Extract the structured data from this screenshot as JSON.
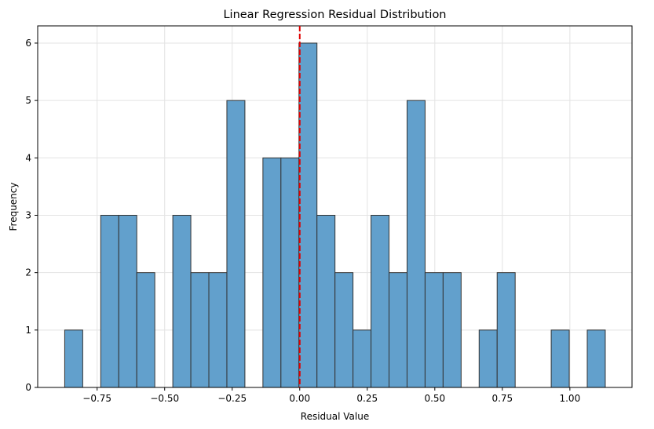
{
  "chart_data": {
    "type": "bar",
    "title": "Linear Regression Residual Distribution",
    "xlabel": "Residual Value",
    "ylabel": "Frequency",
    "bin_start": -0.87,
    "bin_width": 0.0667,
    "counts": [
      1,
      0,
      3,
      3,
      2,
      0,
      3,
      2,
      2,
      5,
      0,
      4,
      4,
      6,
      3,
      2,
      1,
      3,
      2,
      5,
      2,
      2,
      0,
      1,
      2,
      0,
      0,
      1,
      0,
      1
    ],
    "xlim": [
      -0.97,
      1.23
    ],
    "ylim": [
      0,
      6.3
    ],
    "xticks": [
      -0.75,
      -0.5,
      -0.25,
      0.0,
      0.25,
      0.5,
      0.75,
      1.0
    ],
    "xtick_labels": [
      "−0.75",
      "−0.50",
      "−0.25",
      "0.00",
      "0.25",
      "0.50",
      "0.75",
      "1.00"
    ],
    "yticks": [
      0,
      1,
      2,
      3,
      4,
      5,
      6
    ],
    "ytick_labels": [
      "0",
      "1",
      "2",
      "3",
      "4",
      "5",
      "6"
    ],
    "reference_line": {
      "x": 0,
      "color": "#e00000",
      "style": "dashed"
    },
    "bar_color": "#62a0cc",
    "bar_edge_color": "#333333",
    "grid": true
  }
}
